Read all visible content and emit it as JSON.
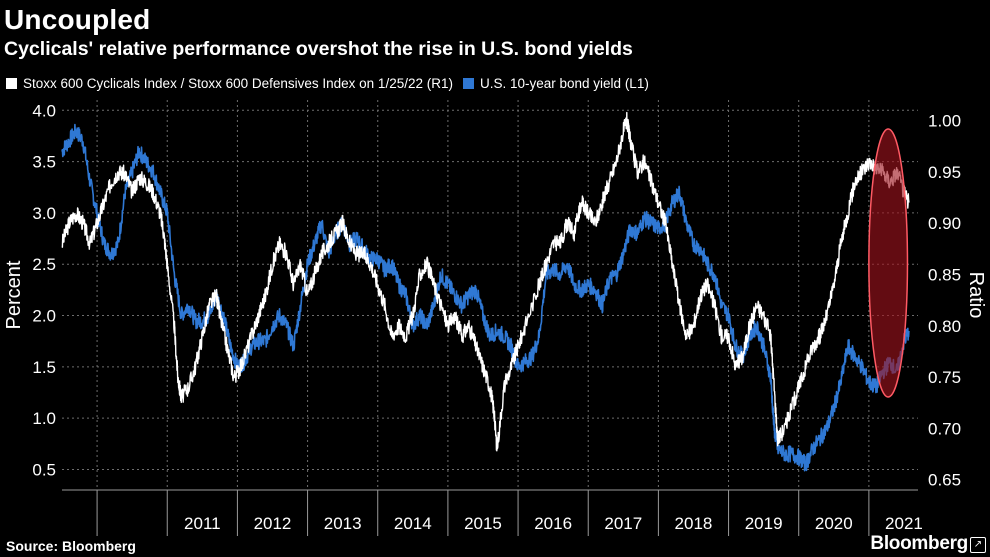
{
  "title": "Uncoupled",
  "subtitle": "Cyclicals' relative performance overshot the rise in U.S. bond yields",
  "source": "Source: Bloomberg",
  "brand": "Bloomberg",
  "colors": {
    "cyclicals": "#ffffff",
    "yield": "#2f78d4",
    "highlight_fill": "#a0131d",
    "highlight_stroke": "#ff5a64",
    "grid": "#6e6e6e"
  },
  "chart_data": {
    "type": "line",
    "left_axis_label": "Percent",
    "right_axis_label": "Ratio",
    "left_ylim": [
      0.3,
      4.1
    ],
    "right_ylim": [
      0.64,
      1.02
    ],
    "left_ticks": [
      "4.0",
      "3.5",
      "3.0",
      "2.5",
      "2.0",
      "1.5",
      "1.0",
      "0.5"
    ],
    "right_ticks": [
      "1.00",
      "0.95",
      "0.90",
      "0.85",
      "0.80",
      "0.75",
      "0.70",
      "0.65"
    ],
    "x_range": [
      2010.0,
      2022.2
    ],
    "year_ticks": [
      "2011",
      "2012",
      "2013",
      "2014",
      "2015",
      "2016",
      "2017",
      "2018",
      "2019",
      "2020",
      "2021"
    ],
    "grid": true,
    "highlight": {
      "shape": "ellipse",
      "x_range": [
        2021.5,
        2022.05
      ],
      "period": "late 2021 - Jan 2022"
    },
    "series": [
      {
        "name": "Stoxx 600 Cyclicals Index / Stoxx 600 Defensives Index on 1/25/22 (R1)",
        "axis": "right",
        "points": [
          [
            2010.0,
            0.88
          ],
          [
            2010.1,
            0.9
          ],
          [
            2010.2,
            0.91
          ],
          [
            2010.3,
            0.9
          ],
          [
            2010.4,
            0.88
          ],
          [
            2010.5,
            0.9
          ],
          [
            2010.6,
            0.92
          ],
          [
            2010.7,
            0.94
          ],
          [
            2010.8,
            0.95
          ],
          [
            2010.9,
            0.948
          ],
          [
            2011.0,
            0.93
          ],
          [
            2011.1,
            0.945
          ],
          [
            2011.2,
            0.94
          ],
          [
            2011.3,
            0.93
          ],
          [
            2011.4,
            0.91
          ],
          [
            2011.45,
            0.89
          ],
          [
            2011.5,
            0.86
          ],
          [
            2011.6,
            0.8
          ],
          [
            2011.65,
            0.75
          ],
          [
            2011.7,
            0.73
          ],
          [
            2011.8,
            0.74
          ],
          [
            2011.9,
            0.76
          ],
          [
            2012.0,
            0.79
          ],
          [
            2012.1,
            0.82
          ],
          [
            2012.2,
            0.83
          ],
          [
            2012.25,
            0.81
          ],
          [
            2012.35,
            0.78
          ],
          [
            2012.45,
            0.75
          ],
          [
            2012.55,
            0.76
          ],
          [
            2012.7,
            0.79
          ],
          [
            2012.8,
            0.81
          ],
          [
            2012.9,
            0.83
          ],
          [
            2013.0,
            0.86
          ],
          [
            2013.1,
            0.88
          ],
          [
            2013.2,
            0.87
          ],
          [
            2013.3,
            0.84
          ],
          [
            2013.4,
            0.86
          ],
          [
            2013.5,
            0.83
          ],
          [
            2013.6,
            0.85
          ],
          [
            2013.7,
            0.87
          ],
          [
            2013.8,
            0.88
          ],
          [
            2013.9,
            0.89
          ],
          [
            2014.0,
            0.9
          ],
          [
            2014.1,
            0.88
          ],
          [
            2014.2,
            0.87
          ],
          [
            2014.3,
            0.87
          ],
          [
            2014.4,
            0.86
          ],
          [
            2014.5,
            0.84
          ],
          [
            2014.6,
            0.82
          ],
          [
            2014.7,
            0.79
          ],
          [
            2014.8,
            0.8
          ],
          [
            2014.9,
            0.79
          ],
          [
            2015.0,
            0.81
          ],
          [
            2015.1,
            0.85
          ],
          [
            2015.2,
            0.86
          ],
          [
            2015.3,
            0.84
          ],
          [
            2015.4,
            0.82
          ],
          [
            2015.5,
            0.8
          ],
          [
            2015.6,
            0.81
          ],
          [
            2015.7,
            0.79
          ],
          [
            2015.8,
            0.8
          ],
          [
            2015.9,
            0.78
          ],
          [
            2016.0,
            0.76
          ],
          [
            2016.1,
            0.74
          ],
          [
            2016.15,
            0.72
          ],
          [
            2016.2,
            0.68
          ],
          [
            2016.3,
            0.74
          ],
          [
            2016.4,
            0.76
          ],
          [
            2016.5,
            0.78
          ],
          [
            2016.6,
            0.8
          ],
          [
            2016.8,
            0.84
          ],
          [
            2016.9,
            0.86
          ],
          [
            2017.0,
            0.88
          ],
          [
            2017.1,
            0.88
          ],
          [
            2017.2,
            0.9
          ],
          [
            2017.3,
            0.89
          ],
          [
            2017.4,
            0.92
          ],
          [
            2017.5,
            0.91
          ],
          [
            2017.6,
            0.9
          ],
          [
            2017.7,
            0.92
          ],
          [
            2017.8,
            0.94
          ],
          [
            2017.9,
            0.96
          ],
          [
            2018.0,
            0.99
          ],
          [
            2018.05,
            1.0
          ],
          [
            2018.1,
            0.98
          ],
          [
            2018.2,
            0.95
          ],
          [
            2018.3,
            0.96
          ],
          [
            2018.4,
            0.94
          ],
          [
            2018.5,
            0.92
          ],
          [
            2018.6,
            0.9
          ],
          [
            2018.7,
            0.86
          ],
          [
            2018.8,
            0.82
          ],
          [
            2018.9,
            0.79
          ],
          [
            2019.0,
            0.8
          ],
          [
            2019.1,
            0.83
          ],
          [
            2019.2,
            0.84
          ],
          [
            2019.3,
            0.82
          ],
          [
            2019.4,
            0.79
          ],
          [
            2019.5,
            0.79
          ],
          [
            2019.6,
            0.76
          ],
          [
            2019.7,
            0.77
          ],
          [
            2019.8,
            0.8
          ],
          [
            2019.9,
            0.82
          ],
          [
            2020.0,
            0.81
          ],
          [
            2020.1,
            0.79
          ],
          [
            2020.15,
            0.74
          ],
          [
            2020.2,
            0.69
          ],
          [
            2020.3,
            0.7
          ],
          [
            2020.4,
            0.72
          ],
          [
            2020.5,
            0.74
          ],
          [
            2020.6,
            0.76
          ],
          [
            2020.7,
            0.78
          ],
          [
            2020.8,
            0.79
          ],
          [
            2020.9,
            0.81
          ],
          [
            2021.0,
            0.84
          ],
          [
            2021.1,
            0.88
          ],
          [
            2021.2,
            0.91
          ],
          [
            2021.3,
            0.94
          ],
          [
            2021.4,
            0.95
          ],
          [
            2021.5,
            0.96
          ],
          [
            2021.6,
            0.955
          ],
          [
            2021.7,
            0.95
          ],
          [
            2021.8,
            0.94
          ],
          [
            2021.9,
            0.95
          ],
          [
            2022.0,
            0.93
          ],
          [
            2022.07,
            0.92
          ]
        ]
      },
      {
        "name": "U.S. 10-year bond yield (L1)",
        "axis": "left",
        "points": [
          [
            2010.0,
            3.6
          ],
          [
            2010.1,
            3.7
          ],
          [
            2010.2,
            3.8
          ],
          [
            2010.3,
            3.7
          ],
          [
            2010.4,
            3.3
          ],
          [
            2010.5,
            3.0
          ],
          [
            2010.6,
            2.7
          ],
          [
            2010.7,
            2.6
          ],
          [
            2010.8,
            2.7
          ],
          [
            2010.9,
            3.2
          ],
          [
            2011.0,
            3.4
          ],
          [
            2011.1,
            3.6
          ],
          [
            2011.2,
            3.5
          ],
          [
            2011.3,
            3.4
          ],
          [
            2011.4,
            3.2
          ],
          [
            2011.5,
            3.0
          ],
          [
            2011.6,
            2.4
          ],
          [
            2011.7,
            2.0
          ],
          [
            2011.8,
            2.1
          ],
          [
            2011.9,
            1.95
          ],
          [
            2012.0,
            1.95
          ],
          [
            2012.1,
            2.0
          ],
          [
            2012.2,
            2.2
          ],
          [
            2012.3,
            2.0
          ],
          [
            2012.4,
            1.7
          ],
          [
            2012.5,
            1.5
          ],
          [
            2012.6,
            1.55
          ],
          [
            2012.7,
            1.7
          ],
          [
            2012.8,
            1.75
          ],
          [
            2012.9,
            1.75
          ],
          [
            2013.0,
            1.9
          ],
          [
            2013.1,
            2.0
          ],
          [
            2013.2,
            1.9
          ],
          [
            2013.3,
            1.7
          ],
          [
            2013.4,
            2.1
          ],
          [
            2013.5,
            2.5
          ],
          [
            2013.6,
            2.7
          ],
          [
            2013.7,
            2.9
          ],
          [
            2013.8,
            2.6
          ],
          [
            2013.9,
            2.8
          ],
          [
            2014.0,
            2.9
          ],
          [
            2014.1,
            2.7
          ],
          [
            2014.2,
            2.75
          ],
          [
            2014.3,
            2.65
          ],
          [
            2014.4,
            2.55
          ],
          [
            2014.5,
            2.55
          ],
          [
            2014.6,
            2.45
          ],
          [
            2014.7,
            2.5
          ],
          [
            2014.8,
            2.3
          ],
          [
            2014.9,
            2.2
          ],
          [
            2015.0,
            1.9
          ],
          [
            2015.1,
            2.0
          ],
          [
            2015.2,
            1.9
          ],
          [
            2015.3,
            2.1
          ],
          [
            2015.4,
            2.4
          ],
          [
            2015.5,
            2.3
          ],
          [
            2015.6,
            2.2
          ],
          [
            2015.7,
            2.1
          ],
          [
            2015.8,
            2.2
          ],
          [
            2015.9,
            2.25
          ],
          [
            2016.0,
            2.0
          ],
          [
            2016.1,
            1.8
          ],
          [
            2016.2,
            1.85
          ],
          [
            2016.3,
            1.8
          ],
          [
            2016.4,
            1.7
          ],
          [
            2016.5,
            1.5
          ],
          [
            2016.6,
            1.55
          ],
          [
            2016.7,
            1.6
          ],
          [
            2016.8,
            1.8
          ],
          [
            2016.9,
            2.4
          ],
          [
            2017.0,
            2.45
          ],
          [
            2017.1,
            2.4
          ],
          [
            2017.2,
            2.5
          ],
          [
            2017.3,
            2.3
          ],
          [
            2017.4,
            2.25
          ],
          [
            2017.5,
            2.3
          ],
          [
            2017.6,
            2.25
          ],
          [
            2017.7,
            2.1
          ],
          [
            2017.8,
            2.35
          ],
          [
            2017.9,
            2.4
          ],
          [
            2018.0,
            2.6
          ],
          [
            2018.1,
            2.85
          ],
          [
            2018.2,
            2.8
          ],
          [
            2018.3,
            2.95
          ],
          [
            2018.4,
            2.9
          ],
          [
            2018.5,
            2.85
          ],
          [
            2018.6,
            2.9
          ],
          [
            2018.7,
            3.1
          ],
          [
            2018.8,
            3.2
          ],
          [
            2018.9,
            2.9
          ],
          [
            2019.0,
            2.7
          ],
          [
            2019.1,
            2.65
          ],
          [
            2019.2,
            2.5
          ],
          [
            2019.3,
            2.4
          ],
          [
            2019.4,
            2.1
          ],
          [
            2019.5,
            2.0
          ],
          [
            2019.6,
            1.7
          ],
          [
            2019.7,
            1.6
          ],
          [
            2019.8,
            1.8
          ],
          [
            2019.9,
            1.9
          ],
          [
            2020.0,
            1.7
          ],
          [
            2020.1,
            1.4
          ],
          [
            2020.15,
            0.9
          ],
          [
            2020.2,
            0.7
          ],
          [
            2020.3,
            0.65
          ],
          [
            2020.4,
            0.65
          ],
          [
            2020.5,
            0.62
          ],
          [
            2020.6,
            0.55
          ],
          [
            2020.7,
            0.7
          ],
          [
            2020.8,
            0.8
          ],
          [
            2020.9,
            0.9
          ],
          [
            2021.0,
            1.1
          ],
          [
            2021.1,
            1.35
          ],
          [
            2021.2,
            1.7
          ],
          [
            2021.3,
            1.6
          ],
          [
            2021.4,
            1.5
          ],
          [
            2021.5,
            1.35
          ],
          [
            2021.6,
            1.3
          ],
          [
            2021.7,
            1.45
          ],
          [
            2021.8,
            1.55
          ],
          [
            2021.9,
            1.45
          ],
          [
            2022.0,
            1.75
          ],
          [
            2022.07,
            1.85
          ]
        ]
      }
    ]
  }
}
